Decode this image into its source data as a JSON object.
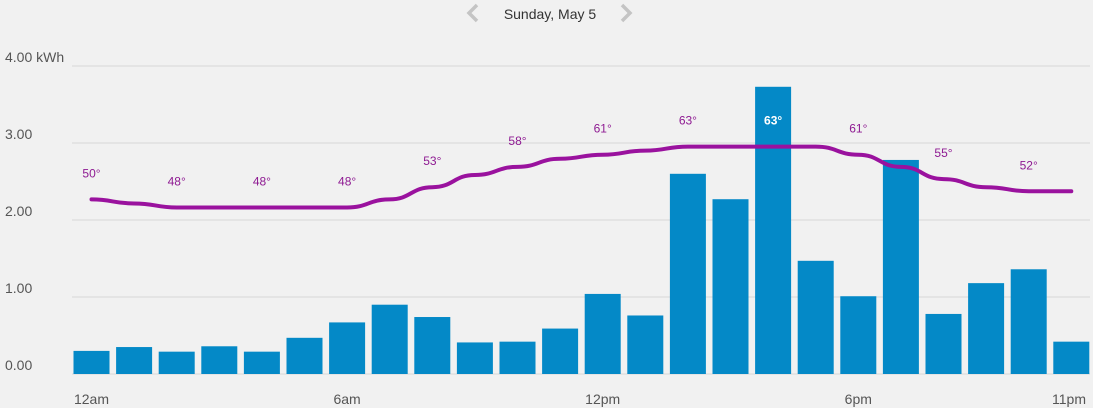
{
  "header": {
    "date_label": "Sunday, May 5",
    "prev_icon": "chevron-left-icon",
    "next_icon": "chevron-right-icon"
  },
  "colors": {
    "background": "#f1f1f1",
    "bar": "#0489c7",
    "temperature_line": "#9a129e",
    "gridline": "#d7d7d7",
    "nav_icon": "#c4c4c4"
  },
  "chart_data": {
    "type": "bar",
    "categories": [
      "12am",
      "1am",
      "2am",
      "3am",
      "4am",
      "5am",
      "6am",
      "7am",
      "8am",
      "9am",
      "10am",
      "11am",
      "12pm",
      "1pm",
      "2pm",
      "3pm",
      "4pm",
      "5pm",
      "6pm",
      "7pm",
      "8pm",
      "9pm",
      "10pm",
      "11pm"
    ],
    "series": [
      {
        "type": "bar",
        "values": [
          0.3,
          0.35,
          0.29,
          0.36,
          0.29,
          0.47,
          0.67,
          0.9,
          0.74,
          0.41,
          0.42,
          0.59,
          1.04,
          0.76,
          2.6,
          2.27,
          3.73,
          1.47,
          1.01,
          2.78,
          0.78,
          1.18,
          1.36,
          0.42
        ]
      },
      {
        "type": "line",
        "values": [
          50,
          49,
          48,
          48,
          48,
          48,
          48,
          50,
          53,
          56,
          58,
          60,
          61,
          62,
          63,
          63,
          63,
          63,
          61,
          58,
          55,
          53,
          52,
          52
        ],
        "value_range": [
          40,
          72
        ]
      }
    ],
    "temperature_labels": [
      {
        "hour_index": 0,
        "text": "50°"
      },
      {
        "hour_index": 3,
        "text": "48°"
      },
      {
        "hour_index": 6,
        "text": "48°"
      },
      {
        "hour_index": 9,
        "text": "48°"
      },
      {
        "hour_index": 12,
        "text": "53°"
      },
      {
        "hour_index": 15,
        "text": "58°"
      },
      {
        "hour_index": 18,
        "text": "61°"
      },
      {
        "hour_index": 21,
        "text": "63°"
      },
      {
        "hour_index": 24,
        "text": "63°",
        "highlight": true
      },
      {
        "hour_index": 27,
        "text": "61°"
      },
      {
        "hour_index": 30,
        "text": "55°"
      },
      {
        "hour_index": 33,
        "text": "52°"
      }
    ],
    "y_ticks": [
      "0.00",
      "1.00",
      "2.00",
      "3.00",
      "4.00 kWh"
    ],
    "y_tick_values": [
      0,
      1,
      2,
      3,
      4
    ],
    "x_tick_labels": [
      {
        "index": 0,
        "text": "12am"
      },
      {
        "index": 6,
        "text": "6am"
      },
      {
        "index": 12,
        "text": "12pm"
      },
      {
        "index": 18,
        "text": "6pm"
      },
      {
        "index": 23,
        "text": "11pm"
      }
    ],
    "ylim": [
      0,
      4
    ],
    "grid": true
  }
}
